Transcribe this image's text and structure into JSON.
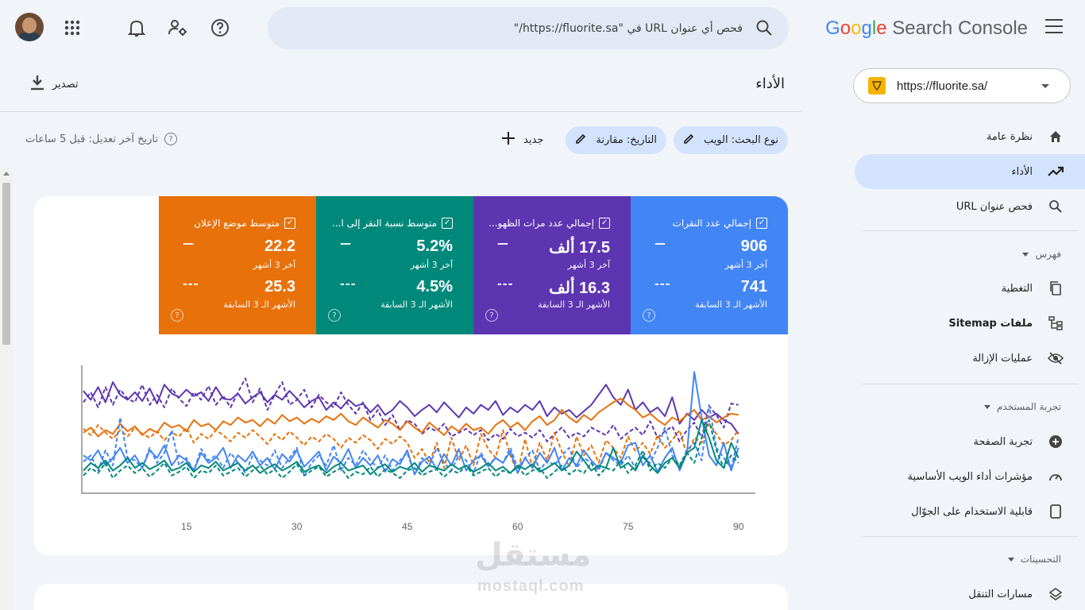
{
  "app": {
    "logo_text": "Google Search Console",
    "logo_parts": [
      "G",
      "o",
      "o",
      "g",
      "l",
      "e"
    ],
    "logo_suffix": "Search Console"
  },
  "property": {
    "url": "https://fluorite.sa/"
  },
  "search": {
    "placeholder": "فحص أي عنوان URL في \"https://fluorite.sa/\""
  },
  "sidebar": {
    "items": [
      {
        "label": "نظرة عامة",
        "icon": "home-icon",
        "active": false
      },
      {
        "label": "الأداء",
        "icon": "trending-up-icon",
        "active": true
      },
      {
        "label": "فحص عنوان URL",
        "icon": "search-icon",
        "active": false
      }
    ],
    "sections": [
      {
        "title": "فهرس",
        "items": [
          {
            "label": "التغطية",
            "icon": "copy-icon"
          },
          {
            "label": "ملفات Sitemap",
            "icon": "sitemap-icon"
          },
          {
            "label": "عمليات الإزالة",
            "icon": "eye-off-icon"
          }
        ]
      },
      {
        "title": "تجربة المستخدم",
        "items": [
          {
            "label": "تجربة الصفحة",
            "icon": "add-circle-icon"
          },
          {
            "label": "مؤشرات أداء الويب الأساسية",
            "icon": "speed-icon"
          },
          {
            "label": "قابلية الاستخدام على الجوّال",
            "icon": "phone-icon"
          }
        ]
      },
      {
        "title": "التحسينات",
        "items": [
          {
            "label": "مسارات التنقل",
            "icon": "layers-icon"
          }
        ]
      }
    ]
  },
  "header": {
    "title": "الأداء",
    "export_label": "تصدير"
  },
  "filters": {
    "chips": [
      {
        "label": "نوع البحث: الويب",
        "icon": "edit-icon"
      },
      {
        "label": "التاريخ: مقارنة",
        "icon": "edit-icon"
      }
    ],
    "new_label": "جديد",
    "last_updated": "تاريخ آخر تعديل: قبل 5 ساعات"
  },
  "metrics": [
    {
      "title": "إجمالي عدد النقرات",
      "value": "906",
      "period": "آخر 3 أشهر",
      "prev_value": "741",
      "prev_period": "الأشهر الـ 3 السابقة",
      "color": "#4285f4"
    },
    {
      "title": "إجمالي عدد مرات الظهو...",
      "value": "17.5 ألف",
      "period": "آخر 3 أشهر",
      "prev_value": "16.3 ألف",
      "prev_period": "الأشهر الـ 3 السابقة",
      "color": "#5e35b1"
    },
    {
      "title": "متوسط نسبة النقر إلى ا...",
      "value": "5.2%",
      "period": "آخر 3 أشهر",
      "prev_value": "4.5%",
      "prev_period": "الأشهر الـ 3 السابقة",
      "color": "#00897b"
    },
    {
      "title": "متوسط موضع الإعلان",
      "value": "22.2",
      "period": "آخر 3 أشهر",
      "prev_value": "25.3",
      "prev_period": "الأشهر الـ 3 السابقة",
      "color": "#e8710a"
    }
  ],
  "chart_data": {
    "type": "line",
    "x_ticks": [
      15,
      30,
      45,
      60,
      75,
      90
    ],
    "xlim": [
      1,
      91
    ],
    "ylim": [
      0,
      100
    ],
    "grid": false,
    "series": [
      {
        "color": "#5e35b1",
        "style": "solid",
        "values": [
          81,
          74,
          84,
          72,
          88,
          78,
          74,
          80,
          73,
          83,
          71,
          86,
          79,
          76,
          82,
          77,
          80,
          73,
          84,
          75,
          74,
          79,
          71,
          76,
          80,
          72,
          78,
          74,
          81,
          75,
          68,
          73,
          76,
          66,
          72,
          67,
          74,
          69,
          71,
          64,
          70,
          62,
          66,
          73,
          68,
          61,
          66,
          70,
          64,
          72,
          66,
          60,
          68,
          63,
          70,
          66,
          73,
          62,
          68,
          64,
          70,
          66,
          73,
          61,
          68,
          63,
          66,
          60,
          65,
          70,
          78,
          86,
          76,
          70,
          82,
          66,
          72,
          64,
          68,
          61,
          76,
          55,
          63,
          58,
          66,
          60,
          63,
          58,
          55,
          47
        ]
      },
      {
        "color": "#5e35b1",
        "style": "dash",
        "values": [
          72,
          80,
          68,
          84,
          70,
          82,
          75,
          72,
          86,
          70,
          78,
          68,
          83,
          75,
          69,
          80,
          74,
          85,
          70,
          77,
          68,
          80,
          91,
          72,
          83,
          66,
          78,
          88,
          70,
          74,
          82,
          68,
          78,
          72,
          68,
          80,
          70,
          63,
          72,
          58,
          66,
          54,
          62,
          50,
          58,
          55,
          47,
          52,
          49,
          55,
          45,
          48,
          51,
          46,
          50,
          42,
          47,
          43,
          51,
          45,
          48,
          44,
          50,
          41,
          47,
          52,
          44,
          48,
          45,
          52,
          49,
          46,
          54,
          43,
          48,
          52,
          46,
          57,
          44,
          49,
          53,
          41,
          50,
          56,
          44,
          69,
          62,
          52,
          71,
          70
        ]
      },
      {
        "color": "#e8710a",
        "style": "solid",
        "values": [
          48,
          52,
          45,
          50,
          47,
          55,
          49,
          53,
          46,
          51,
          48,
          56,
          52,
          54,
          49,
          58,
          53,
          55,
          50,
          57,
          54,
          60,
          56,
          58,
          53,
          59,
          55,
          62,
          57,
          60,
          55,
          59,
          56,
          61,
          58,
          63,
          57,
          54,
          60,
          56,
          52,
          58,
          55,
          50,
          57,
          52,
          48,
          56,
          51,
          46,
          53,
          49,
          55,
          50,
          52,
          47,
          54,
          58,
          52,
          56,
          50,
          57,
          61,
          54,
          58,
          66,
          60,
          56,
          62,
          58,
          64,
          68,
          72,
          75,
          70,
          66,
          60,
          63,
          58,
          54,
          60,
          57,
          62,
          66,
          58,
          61,
          56,
          60,
          63,
          62
        ]
      },
      {
        "color": "#e8710a",
        "style": "dash",
        "values": [
          51,
          46,
          54,
          48,
          43,
          50,
          45,
          52,
          47,
          44,
          49,
          42,
          48,
          45,
          52,
          40,
          47,
          43,
          50,
          46,
          41,
          48,
          44,
          50,
          45,
          39,
          47,
          42,
          49,
          44,
          38,
          45,
          41,
          47,
          43,
          36,
          44,
          40,
          46,
          42,
          35,
          43,
          39,
          45,
          40,
          28,
          35,
          24,
          40,
          20,
          44,
          26,
          38,
          22,
          47,
          35,
          28,
          50,
          30,
          16,
          43,
          20,
          40,
          26,
          48,
          33,
          21,
          45,
          30,
          38,
          24,
          42,
          36,
          28,
          45,
          33,
          40,
          31,
          46,
          36,
          42,
          50,
          30,
          44,
          40,
          55,
          47,
          38,
          42,
          50
        ]
      },
      {
        "color": "#4285f4",
        "style": "solid",
        "values": [
          30,
          26,
          34,
          22,
          28,
          36,
          24,
          30,
          20,
          34,
          28,
          38,
          22,
          30,
          26,
          18,
          32,
          24,
          28,
          36,
          20,
          30,
          25,
          33,
          22,
          28,
          19,
          31,
          25,
          34,
          21,
          27,
          33,
          18,
          29,
          24,
          35,
          20,
          28,
          22,
          30,
          17,
          27,
          23,
          34,
          15,
          25,
          29,
          19,
          31,
          22,
          35,
          18,
          26,
          30,
          21,
          28,
          24,
          33,
          16,
          28,
          20,
          32,
          24,
          36,
          18,
          28,
          22,
          34,
          26,
          20,
          32,
          28,
          24,
          38,
          40,
          22,
          30,
          17,
          28,
          36,
          18,
          32,
          96,
          60,
          30,
          22,
          40,
          18,
          36
        ]
      },
      {
        "color": "#4285f4",
        "style": "dash",
        "values": [
          25,
          30,
          18,
          34,
          22,
          60,
          28,
          26,
          20,
          36,
          24,
          32,
          50,
          22,
          28,
          18,
          35,
          26,
          30,
          20,
          32,
          24,
          16,
          30,
          26,
          22,
          34,
          20,
          28,
          36,
          14,
          24,
          30,
          22,
          38,
          18,
          28,
          22,
          34,
          26,
          20,
          30,
          18,
          26,
          32,
          15,
          28,
          22,
          36,
          24,
          18,
          30,
          26,
          16,
          32,
          22,
          28,
          24,
          36,
          20,
          28,
          34,
          18,
          26,
          22,
          30,
          36,
          20,
          28,
          24,
          18,
          32,
          26,
          22,
          30,
          20,
          28,
          24,
          36,
          52,
          30,
          22,
          34,
          40,
          26,
          70,
          36,
          28,
          20,
          44
        ]
      },
      {
        "color": "#00897b",
        "style": "solid",
        "values": [
          18,
          24,
          20,
          26,
          18,
          22,
          28,
          20,
          24,
          19,
          22,
          26,
          18,
          20,
          24,
          17,
          22,
          20,
          25,
          18,
          21,
          24,
          18,
          22,
          16,
          20,
          23,
          18,
          21,
          25,
          17,
          20,
          22,
          16,
          21,
          24,
          18,
          20,
          22,
          15,
          20,
          23,
          17,
          21,
          19,
          24,
          17,
          22,
          20,
          18,
          23,
          19,
          22,
          17,
          20,
          24,
          18,
          21,
          16,
          22,
          19,
          23,
          17,
          20,
          24,
          18,
          22,
          33,
          26,
          18,
          22,
          20,
          36,
          20,
          24,
          18,
          30,
          22,
          16,
          24,
          28,
          20,
          32,
          36,
          58,
          44,
          26,
          20,
          40,
          28
        ]
      },
      {
        "color": "#00897b",
        "style": "dash",
        "values": [
          14,
          20,
          16,
          24,
          12,
          18,
          22,
          16,
          20,
          13,
          18,
          24,
          14,
          17,
          21,
          12,
          18,
          16,
          22,
          14,
          17,
          20,
          13,
          18,
          22,
          15,
          19,
          12,
          17,
          23,
          14,
          18,
          21,
          13,
          17,
          20,
          12,
          17,
          15,
          21,
          13,
          19,
          16,
          12,
          18,
          20,
          14,
          17,
          19,
          13,
          18,
          16,
          22,
          14,
          17,
          20,
          13,
          18,
          16,
          21,
          14,
          18,
          20,
          12,
          17,
          22,
          15,
          19,
          16,
          24,
          14,
          20,
          18,
          26,
          16,
          22,
          34,
          18,
          24,
          20,
          28,
          22,
          32,
          24,
          44,
          58,
          34,
          20,
          30,
          24
        ]
      }
    ]
  },
  "watermark": {
    "text_ar": "مستقل",
    "text_en": "mostaql.com"
  }
}
